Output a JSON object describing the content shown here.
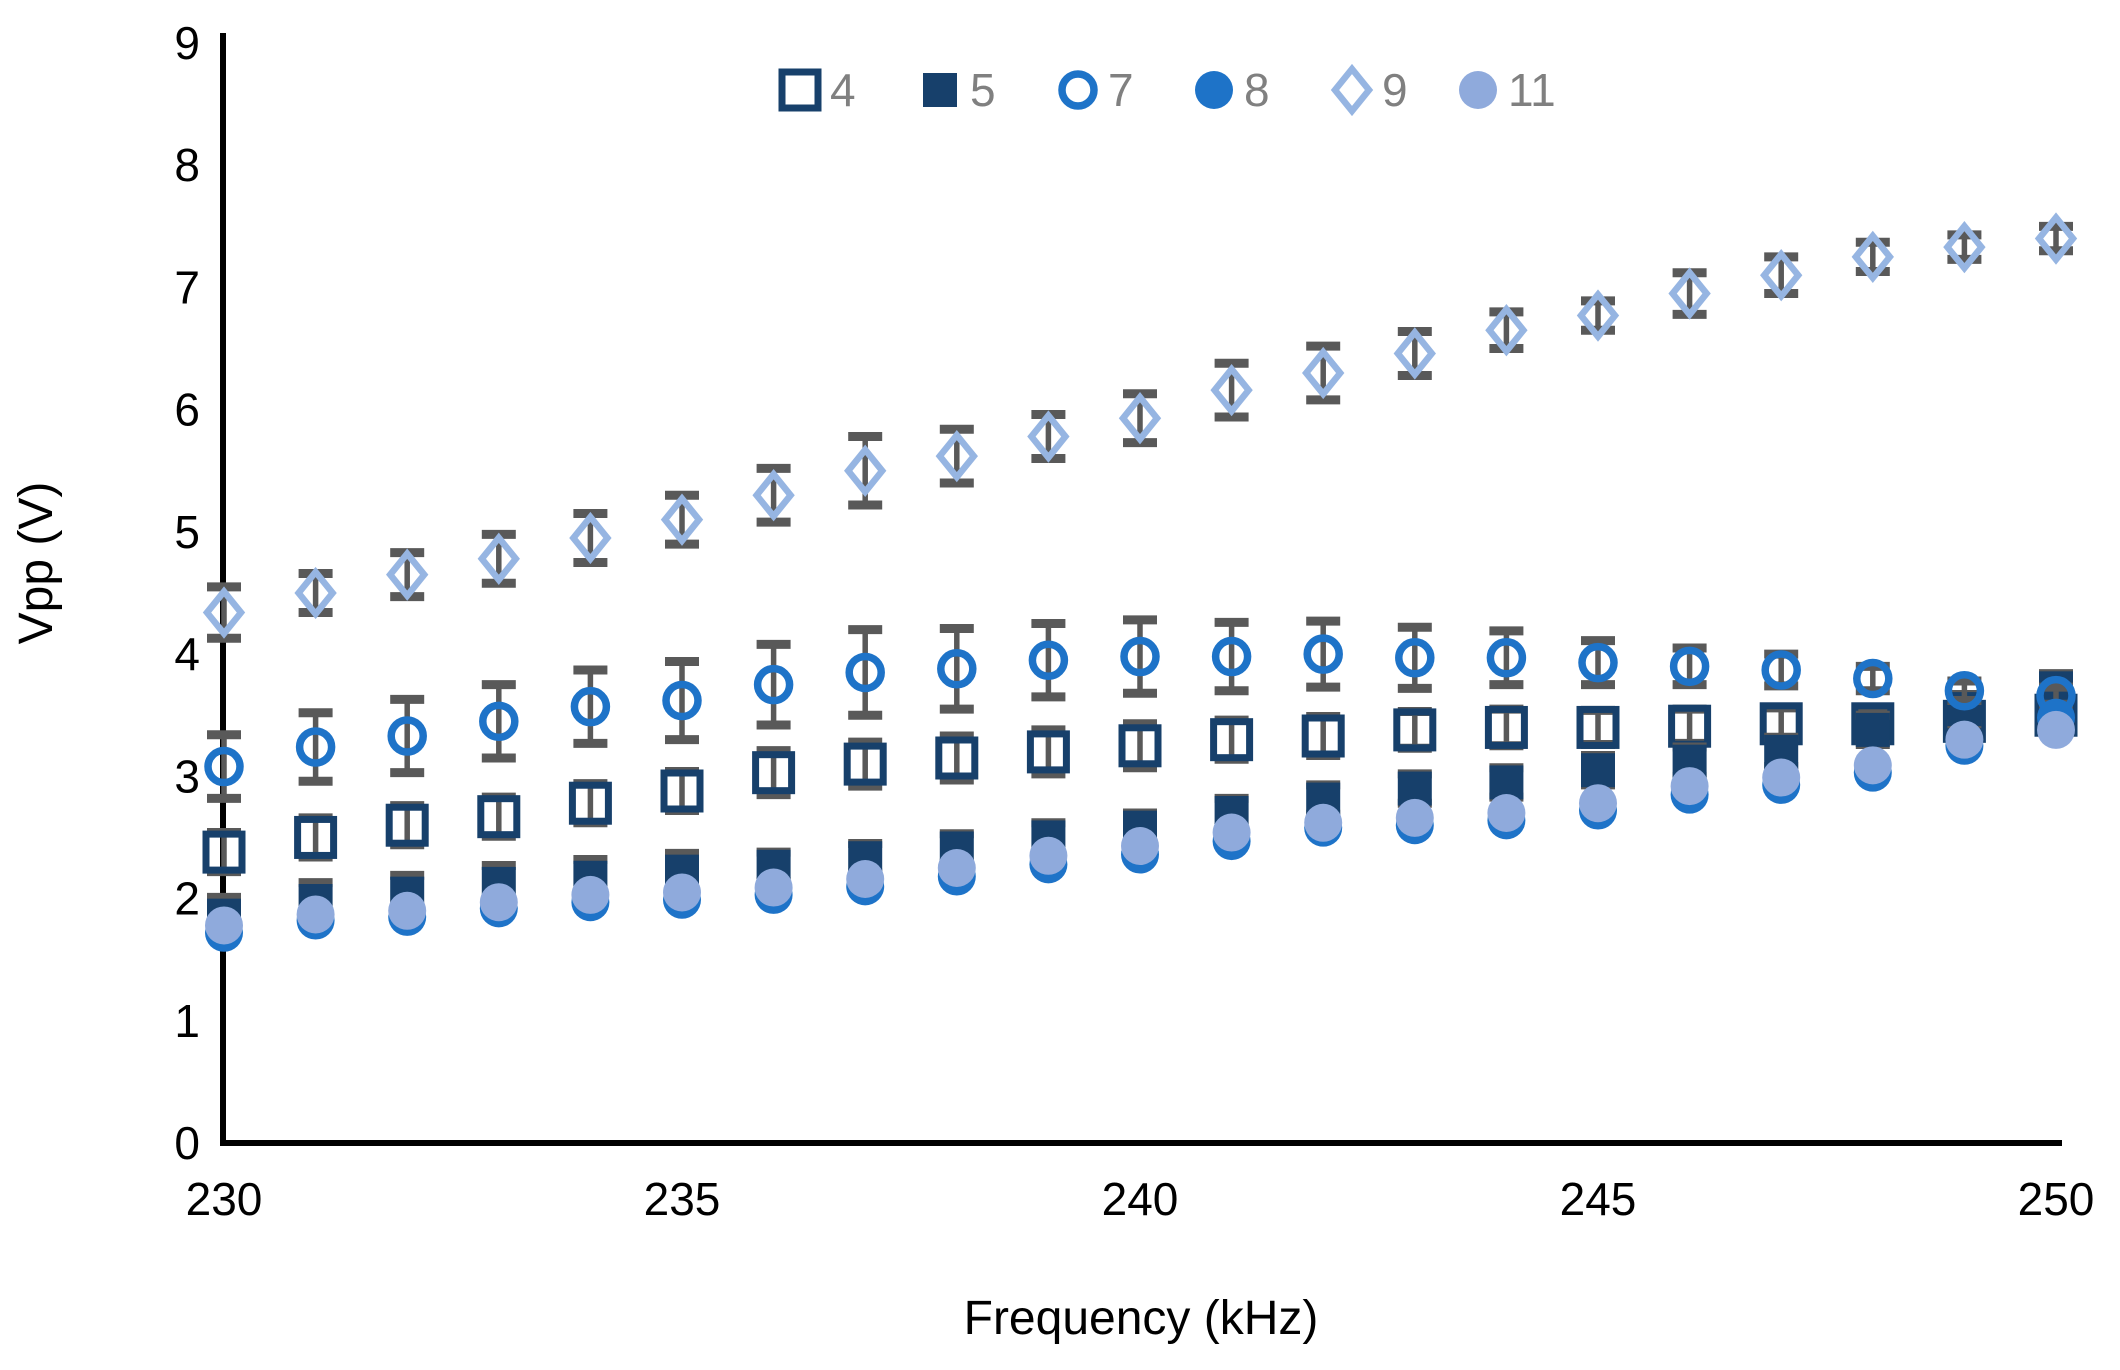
{
  "chart_data": {
    "type": "scatter",
    "title": "",
    "xlabel": "Frequency (kHz)",
    "ylabel": "Vpp (V)",
    "xlim": [
      229.5,
      250.7
    ],
    "ylim": [
      0,
      9
    ],
    "xticks": [
      230,
      235,
      240,
      245,
      250
    ],
    "yticks": [
      0,
      1,
      2,
      3,
      4,
      5,
      6,
      7,
      8,
      9
    ],
    "grid": false,
    "legend_position": "top-center",
    "x": [
      230,
      231,
      232,
      233,
      234,
      235,
      236,
      237,
      238,
      239,
      240,
      241,
      242,
      243,
      244,
      245,
      246,
      247,
      248,
      249,
      250
    ],
    "series": [
      {
        "name": "4",
        "marker": "square-open",
        "color": "#17406B",
        "values": [
          2.38,
          2.5,
          2.6,
          2.67,
          2.78,
          2.88,
          3.03,
          3.1,
          3.15,
          3.2,
          3.25,
          3.3,
          3.33,
          3.38,
          3.4,
          3.4,
          3.41,
          3.43,
          3.43,
          3.45,
          3.5
        ],
        "errors": [
          0.16,
          0.16,
          0.16,
          0.16,
          0.16,
          0.16,
          0.18,
          0.18,
          0.18,
          0.18,
          0.18,
          0.16,
          0.16,
          0.15,
          0.15,
          0.14,
          0.14,
          0.13,
          0.12,
          0.12,
          0.12
        ]
      },
      {
        "name": "5",
        "marker": "square-filled",
        "color": "#17406B",
        "values": [
          1.86,
          1.98,
          2.04,
          2.12,
          2.17,
          2.22,
          2.26,
          2.33,
          2.41,
          2.5,
          2.58,
          2.7,
          2.81,
          2.9,
          2.95,
          3.05,
          3.12,
          3.2,
          3.38,
          3.55,
          3.72
        ],
        "errors": [
          0.15,
          0.15,
          0.15,
          0.15,
          0.15,
          0.15,
          0.12,
          0.12,
          0.12,
          0.12,
          0.12,
          0.12,
          0.12,
          0.12,
          0.12,
          0.12,
          0.12,
          0.12,
          0.12,
          0.12,
          0.12
        ]
      },
      {
        "name": "7",
        "marker": "circle-open",
        "color": "#1E73C8",
        "values": [
          3.08,
          3.24,
          3.33,
          3.45,
          3.57,
          3.62,
          3.75,
          3.85,
          3.88,
          3.95,
          3.98,
          3.98,
          4.0,
          3.97,
          3.97,
          3.93,
          3.9,
          3.87,
          3.8,
          3.7,
          3.66
        ],
        "errors": [
          0.26,
          0.28,
          0.3,
          0.3,
          0.3,
          0.32,
          0.33,
          0.35,
          0.33,
          0.3,
          0.3,
          0.28,
          0.27,
          0.25,
          0.22,
          0.18,
          0.15,
          0.13,
          0.1,
          0.08,
          0.07
        ]
      },
      {
        "name": "8",
        "marker": "circle-filled",
        "color": "#1E73C8",
        "values": [
          1.72,
          1.82,
          1.85,
          1.92,
          1.97,
          1.99,
          2.03,
          2.1,
          2.18,
          2.28,
          2.36,
          2.47,
          2.58,
          2.6,
          2.64,
          2.72,
          2.85,
          2.93,
          3.03,
          3.25,
          3.48
        ],
        "errors": [
          0,
          0,
          0,
          0,
          0,
          0,
          0,
          0,
          0,
          0,
          0,
          0,
          0,
          0,
          0,
          0,
          0,
          0,
          0,
          0,
          0
        ]
      },
      {
        "name": "9",
        "marker": "diamond-open",
        "color": "#96B5E2",
        "values": [
          4.34,
          4.5,
          4.65,
          4.78,
          4.95,
          5.1,
          5.3,
          5.5,
          5.62,
          5.78,
          5.93,
          6.16,
          6.3,
          6.46,
          6.65,
          6.77,
          6.95,
          7.1,
          7.25,
          7.33,
          7.4
        ],
        "errors": [
          0.21,
          0.16,
          0.18,
          0.2,
          0.2,
          0.2,
          0.22,
          0.28,
          0.22,
          0.18,
          0.2,
          0.22,
          0.22,
          0.18,
          0.15,
          0.12,
          0.17,
          0.15,
          0.12,
          0.1,
          0.1
        ]
      },
      {
        "name": "11",
        "marker": "circle-filled",
        "color": "#8FAADC",
        "values": [
          1.78,
          1.87,
          1.9,
          1.97,
          2.03,
          2.05,
          2.09,
          2.16,
          2.25,
          2.35,
          2.43,
          2.54,
          2.62,
          2.66,
          2.7,
          2.78,
          2.92,
          2.99,
          3.09,
          3.3,
          3.38
        ],
        "errors": [
          0,
          0,
          0,
          0,
          0,
          0,
          0,
          0,
          0,
          0,
          0,
          0,
          0,
          0,
          0,
          0,
          0,
          0,
          0,
          0,
          0
        ]
      }
    ],
    "error_bar_color": "#595959",
    "legend_text_color": "#808080",
    "axis_text_color": "#000000",
    "axis_line_color": "#000000"
  }
}
